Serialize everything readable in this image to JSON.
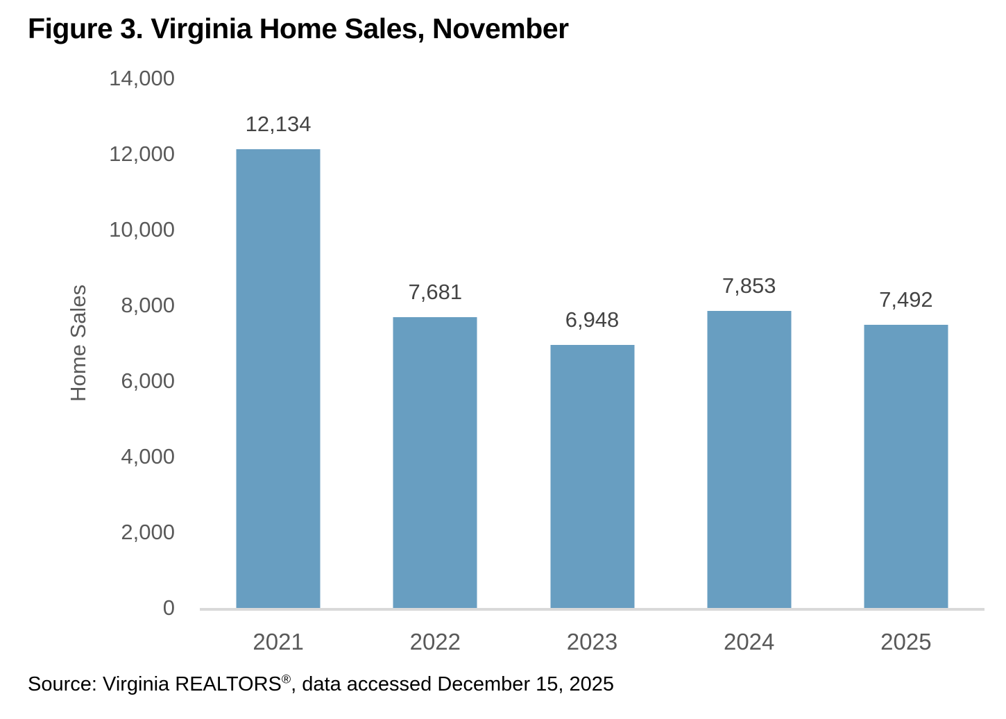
{
  "title": "Figure 3. Virginia Home Sales, November",
  "chart_data": {
    "type": "bar",
    "categories": [
      "2021",
      "2022",
      "2023",
      "2024",
      "2025"
    ],
    "values": [
      12134,
      7681,
      6948,
      7853,
      7492
    ],
    "value_labels": [
      "12,134",
      "7,681",
      "6,948",
      "7,853",
      "7,492"
    ],
    "title": "Figure 3. Virginia Home Sales, November",
    "xlabel": "",
    "ylabel": "Home Sales",
    "ylim": [
      0,
      14000
    ],
    "ytick_step": 2000,
    "ytick_labels": [
      "0",
      "2,000",
      "4,000",
      "6,000",
      "8,000",
      "10,000",
      "12,000",
      "14,000"
    ],
    "grid": false,
    "legend": false,
    "bar_color": "#689ec1"
  },
  "colors": {
    "bar": "#689ec1",
    "axis_line": "#d9d9d9",
    "tick_text": "#595959",
    "data_label_text": "#444444",
    "title_text": "#000000"
  },
  "source": {
    "prefix": "Source: Virginia REALTORS",
    "registered_mark": "®",
    "suffix": ", data accessed December 15, 2025"
  }
}
